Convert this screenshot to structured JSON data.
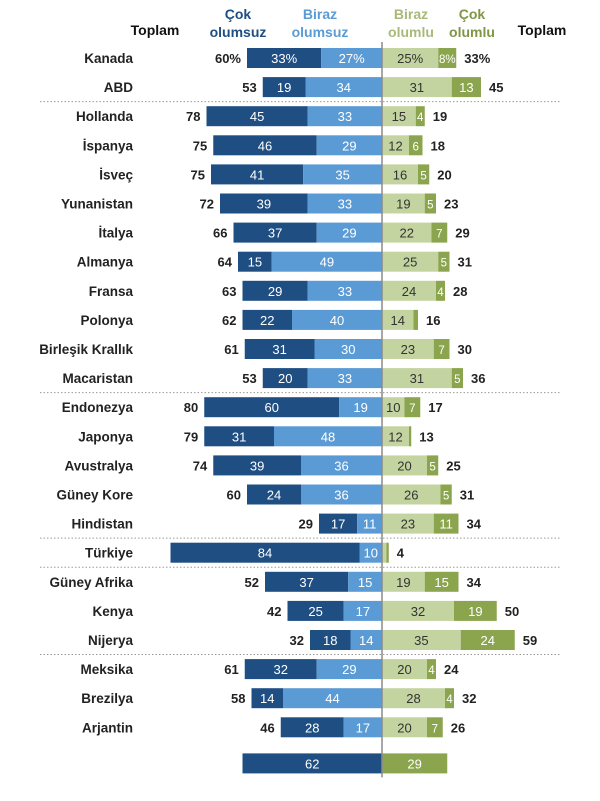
{
  "headers": {
    "total_left": "Toplam",
    "very_negative": [
      "Çok",
      "olumsuz"
    ],
    "somewhat_negative": [
      "Biraz",
      "olumsuz"
    ],
    "somewhat_positive": [
      "Biraz",
      "olumlu"
    ],
    "very_positive": [
      "Çok",
      "olumlu"
    ],
    "total_right": "Toplam"
  },
  "colors": {
    "very_negative": "#1f4e83",
    "somewhat_negative": "#5b9bd5",
    "somewhat_positive": "#c4d4a0",
    "very_positive": "#8ba44e",
    "header_neg_dark": "#1f4e83",
    "header_neg_light": "#5b9bd5",
    "header_pos_light": "#a9b97a",
    "header_pos_dark": "#7f9645",
    "text": "#222222"
  },
  "chart_data": {
    "type": "bar",
    "orientation": "horizontal-diverging",
    "unit": "%",
    "categories": [
      "Kanada",
      "ABD",
      "Hollanda",
      "İspanya",
      "İsveç",
      "Yunanistan",
      "İtalya",
      "Almanya",
      "Fransa",
      "Polonya",
      "Birleşik Krallık",
      "Macaristan",
      "Endonezya",
      "Japonya",
      "Avustralya",
      "Güney Kore",
      "Hindistan",
      "Türkiye",
      "Güney Afrika",
      "Kenya",
      "Nijerya",
      "Meksika",
      "Brezilya",
      "Arjantin"
    ],
    "rows": [
      {
        "country": "Kanada",
        "total_neg": "60%",
        "very_neg": 33,
        "very_neg_label": "33%",
        "some_neg": 27,
        "some_neg_label": "27%",
        "some_pos": 25,
        "some_pos_label": "25%",
        "very_pos": 8,
        "very_pos_label": "8%",
        "total_pos": "33%"
      },
      {
        "country": "ABD",
        "total_neg": "53",
        "very_neg": 19,
        "very_neg_label": "19",
        "some_neg": 34,
        "some_neg_label": "34",
        "some_pos": 31,
        "some_pos_label": "31",
        "very_pos": 13,
        "very_pos_label": "13",
        "total_pos": "45"
      },
      {
        "country": "Hollanda",
        "total_neg": "78",
        "very_neg": 45,
        "very_neg_label": "45",
        "some_neg": 33,
        "some_neg_label": "33",
        "some_pos": 15,
        "some_pos_label": "15",
        "very_pos": 4,
        "very_pos_label": "4",
        "total_pos": "19"
      },
      {
        "country": "İspanya",
        "total_neg": "75",
        "very_neg": 46,
        "very_neg_label": "46",
        "some_neg": 29,
        "some_neg_label": "29",
        "some_pos": 12,
        "some_pos_label": "12",
        "very_pos": 6,
        "very_pos_label": "6",
        "total_pos": "18"
      },
      {
        "country": "İsveç",
        "total_neg": "75",
        "very_neg": 41,
        "very_neg_label": "41",
        "some_neg": 35,
        "some_neg_label": "35",
        "some_pos": 16,
        "some_pos_label": "16",
        "very_pos": 5,
        "very_pos_label": "5",
        "total_pos": "20"
      },
      {
        "country": "Yunanistan",
        "total_neg": "72",
        "very_neg": 39,
        "very_neg_label": "39",
        "some_neg": 33,
        "some_neg_label": "33",
        "some_pos": 19,
        "some_pos_label": "19",
        "very_pos": 5,
        "very_pos_label": "5",
        "total_pos": "23"
      },
      {
        "country": "İtalya",
        "total_neg": "66",
        "very_neg": 37,
        "very_neg_label": "37",
        "some_neg": 29,
        "some_neg_label": "29",
        "some_pos": 22,
        "some_pos_label": "22",
        "very_pos": 7,
        "very_pos_label": "7",
        "total_pos": "29"
      },
      {
        "country": "Almanya",
        "total_neg": "64",
        "very_neg": 15,
        "very_neg_label": "15",
        "some_neg": 49,
        "some_neg_label": "49",
        "some_pos": 25,
        "some_pos_label": "25",
        "very_pos": 5,
        "very_pos_label": "5",
        "total_pos": "31"
      },
      {
        "country": "Fransa",
        "total_neg": "63",
        "very_neg": 29,
        "very_neg_label": "29",
        "some_neg": 33,
        "some_neg_label": "33",
        "some_pos": 24,
        "some_pos_label": "24",
        "very_pos": 4,
        "very_pos_label": "4",
        "total_pos": "28"
      },
      {
        "country": "Polonya",
        "total_neg": "62",
        "very_neg": 22,
        "very_neg_label": "22",
        "some_neg": 40,
        "some_neg_label": "40",
        "some_pos": 14,
        "some_pos_label": "14",
        "very_pos": 2,
        "very_pos_label": "",
        "total_pos": "16"
      },
      {
        "country": "Birleşik Krallık",
        "total_neg": "61",
        "very_neg": 31,
        "very_neg_label": "31",
        "some_neg": 30,
        "some_neg_label": "30",
        "some_pos": 23,
        "some_pos_label": "23",
        "very_pos": 7,
        "very_pos_label": "7",
        "total_pos": "30"
      },
      {
        "country": "Macaristan",
        "total_neg": "53",
        "very_neg": 20,
        "very_neg_label": "20",
        "some_neg": 33,
        "some_neg_label": "33",
        "some_pos": 31,
        "some_pos_label": "31",
        "very_pos": 5,
        "very_pos_label": "5",
        "total_pos": "36"
      },
      {
        "country": "Endonezya",
        "total_neg": "80",
        "very_neg": 60,
        "very_neg_label": "60",
        "some_neg": 19,
        "some_neg_label": "19",
        "some_pos": 10,
        "some_pos_label": "10",
        "very_pos": 7,
        "very_pos_label": "7",
        "total_pos": "17"
      },
      {
        "country": "Japonya",
        "total_neg": "79",
        "very_neg": 31,
        "very_neg_label": "31",
        "some_neg": 48,
        "some_neg_label": "48",
        "some_pos": 12,
        "some_pos_label": "12",
        "very_pos": 1,
        "very_pos_label": "",
        "total_pos": "13"
      },
      {
        "country": "Avustralya",
        "total_neg": "74",
        "very_neg": 39,
        "very_neg_label": "39",
        "some_neg": 36,
        "some_neg_label": "36",
        "some_pos": 20,
        "some_pos_label": "20",
        "very_pos": 5,
        "very_pos_label": "5",
        "total_pos": "25"
      },
      {
        "country": "Güney Kore",
        "total_neg": "60",
        "very_neg": 24,
        "very_neg_label": "24",
        "some_neg": 36,
        "some_neg_label": "36",
        "some_pos": 26,
        "some_pos_label": "26",
        "very_pos": 5,
        "very_pos_label": "5",
        "total_pos": "31"
      },
      {
        "country": "Hindistan",
        "total_neg": "29",
        "very_neg": 17,
        "very_neg_label": "17",
        "some_neg": 11,
        "some_neg_label": "11",
        "some_pos": 23,
        "some_pos_label": "23",
        "very_pos": 11,
        "very_pos_label": "11",
        "total_pos": "34"
      },
      {
        "country": "Türkiye",
        "total_neg": "",
        "very_neg": 84,
        "very_neg_label": "84",
        "some_neg": 10,
        "some_neg_label": "10",
        "some_pos": 2,
        "some_pos_label": "",
        "very_pos": 1,
        "very_pos_label": "",
        "total_pos": "4"
      },
      {
        "country": "Güney Afrika",
        "total_neg": "52",
        "very_neg": 37,
        "very_neg_label": "37",
        "some_neg": 15,
        "some_neg_label": "15",
        "some_pos": 19,
        "some_pos_label": "19",
        "very_pos": 15,
        "very_pos_label": "15",
        "total_pos": "34"
      },
      {
        "country": "Kenya",
        "total_neg": "42",
        "very_neg": 25,
        "very_neg_label": "25",
        "some_neg": 17,
        "some_neg_label": "17",
        "some_pos": 32,
        "some_pos_label": "32",
        "very_pos": 19,
        "very_pos_label": "19",
        "total_pos": "50"
      },
      {
        "country": "Nijerya",
        "total_neg": "32",
        "very_neg": 18,
        "very_neg_label": "18",
        "some_neg": 14,
        "some_neg_label": "14",
        "some_pos": 35,
        "some_pos_label": "35",
        "very_pos": 24,
        "very_pos_label": "24",
        "total_pos": "59"
      },
      {
        "country": "Meksika",
        "total_neg": "61",
        "very_neg": 32,
        "very_neg_label": "32",
        "some_neg": 29,
        "some_neg_label": "29",
        "some_pos": 20,
        "some_pos_label": "20",
        "very_pos": 4,
        "very_pos_label": "4",
        "total_pos": "24"
      },
      {
        "country": "Brezilya",
        "total_neg": "58",
        "very_neg": 14,
        "very_neg_label": "14",
        "some_neg": 44,
        "some_neg_label": "44",
        "some_pos": 28,
        "some_pos_label": "28",
        "very_pos": 4,
        "very_pos_label": "4",
        "total_pos": "32"
      },
      {
        "country": "Arjantin",
        "total_neg": "46",
        "very_neg": 28,
        "very_neg_label": "28",
        "some_neg": 17,
        "some_neg_label": "17",
        "some_pos": 20,
        "some_pos_label": "20",
        "very_pos": 7,
        "very_pos_label": "7",
        "total_pos": "26"
      }
    ],
    "summary": {
      "negative": 62,
      "negative_label": "62",
      "positive": 29,
      "positive_label": "29"
    },
    "group_separators_after": [
      "ABD",
      "Macaristan",
      "Hindistan",
      "Türkiye",
      "Nijerya"
    ]
  }
}
